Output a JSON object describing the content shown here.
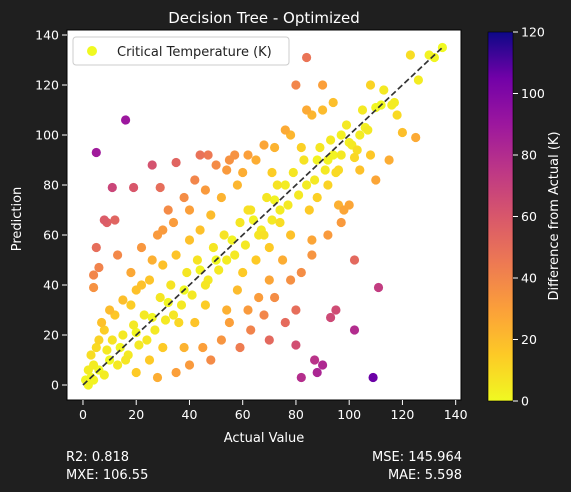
{
  "chart_data": {
    "type": "scatter",
    "title": "Decision Tree - Optimized",
    "xlabel": "Actual Value",
    "ylabel": "Prediction",
    "xlim": [
      -6,
      142
    ],
    "ylim": [
      -6,
      142
    ],
    "xticks": [
      0,
      20,
      40,
      60,
      80,
      100,
      120,
      140
    ],
    "yticks": [
      0,
      20,
      40,
      60,
      80,
      100,
      120,
      140
    ],
    "grid": false,
    "legend": {
      "placement": "top-left",
      "entries": [
        "Critical Temperature (K)"
      ]
    },
    "reference_line": {
      "style": "dashed",
      "color": "#333333",
      "from": [
        0,
        0
      ],
      "to": [
        135,
        135
      ]
    },
    "colorbar": {
      "label": "Difference from Actual (K)",
      "range": [
        0,
        120
      ],
      "ticks": [
        0,
        20,
        40,
        60,
        80,
        100,
        120
      ],
      "colormap": "plasma_r"
    },
    "series": [
      {
        "name": "Critical Temperature (K)",
        "points": [
          [
            5,
            93,
            88
          ],
          [
            16,
            106,
            90
          ],
          [
            11,
            79,
            68
          ],
          [
            8,
            66,
            58
          ],
          [
            9,
            65,
            56
          ],
          [
            12,
            66,
            54
          ],
          [
            5,
            55,
            50
          ],
          [
            4,
            44,
            40
          ],
          [
            4,
            39,
            35
          ],
          [
            6,
            47,
            41
          ],
          [
            13,
            52,
            39
          ],
          [
            19,
            79,
            60
          ],
          [
            26,
            88,
            62
          ],
          [
            29,
            79,
            50
          ],
          [
            35,
            89,
            54
          ],
          [
            44,
            92,
            48
          ],
          [
            47,
            92,
            45
          ],
          [
            57,
            92,
            35
          ],
          [
            65,
            90,
            25
          ],
          [
            71,
            85,
            14
          ],
          [
            80,
            120,
            40
          ],
          [
            84,
            131,
            47
          ],
          [
            90,
            120,
            30
          ],
          [
            94,
            113,
            19
          ],
          [
            102,
            91,
            11
          ],
          [
            108,
            120,
            12
          ],
          [
            110,
            82,
            28
          ],
          [
            115,
            90,
            25
          ],
          [
            123,
            132,
            9
          ],
          [
            130,
            132,
            2
          ],
          [
            135,
            135,
            0
          ],
          [
            132,
            131,
            1
          ],
          [
            118,
            108,
            10
          ],
          [
            120,
            101,
            19
          ],
          [
            125,
            99,
            26
          ],
          [
            106,
            103,
            3
          ],
          [
            110,
            111,
            1
          ],
          [
            97,
            100,
            3
          ],
          [
            112,
            112,
            0
          ],
          [
            100,
            97,
            3
          ],
          [
            92,
            90,
            2
          ],
          [
            103,
            94,
            9
          ],
          [
            96,
            86,
            10
          ],
          [
            98,
            70,
            28
          ],
          [
            102,
            50,
            52
          ],
          [
            95,
            30,
            65
          ],
          [
            102,
            22,
            80
          ],
          [
            109,
            3,
            106
          ],
          [
            111,
            39,
            72
          ],
          [
            93,
            27,
            66
          ],
          [
            90,
            8,
            82
          ],
          [
            88,
            5,
            83
          ],
          [
            87,
            10,
            77
          ],
          [
            82,
            3,
            79
          ],
          [
            80,
            16,
            64
          ],
          [
            80,
            30,
            50
          ],
          [
            76,
            25,
            51
          ],
          [
            72,
            35,
            37
          ],
          [
            70,
            18,
            52
          ],
          [
            68,
            28,
            40
          ],
          [
            63,
            22,
            41
          ],
          [
            59,
            15,
            44
          ],
          [
            55,
            25,
            30
          ],
          [
            52,
            18,
            34
          ],
          [
            48,
            10,
            38
          ],
          [
            45,
            15,
            30
          ],
          [
            42,
            25,
            17
          ],
          [
            40,
            8,
            32
          ],
          [
            35,
            5,
            30
          ],
          [
            28,
            3,
            25
          ],
          [
            30,
            15,
            15
          ],
          [
            25,
            10,
            15
          ],
          [
            20,
            5,
            15
          ],
          [
            38,
            15,
            23
          ],
          [
            36,
            25,
            11
          ],
          [
            60,
            45,
            15
          ],
          [
            65,
            50,
            15
          ],
          [
            70,
            55,
            15
          ],
          [
            75,
            50,
            25
          ],
          [
            78,
            60,
            18
          ],
          [
            85,
            70,
            15
          ],
          [
            88,
            75,
            13
          ],
          [
            92,
            80,
            12
          ],
          [
            95,
            85,
            10
          ],
          [
            100,
            72,
            28
          ],
          [
            97,
            65,
            32
          ],
          [
            86,
            58,
            28
          ],
          [
            82,
            45,
            37
          ],
          [
            74,
            65,
            9
          ],
          [
            68,
            60,
            8
          ],
          [
            62,
            70,
            8
          ],
          [
            58,
            80,
            22
          ],
          [
            52,
            75,
            23
          ],
          [
            48,
            68,
            20
          ],
          [
            44,
            62,
            18
          ],
          [
            40,
            58,
            18
          ],
          [
            35,
            52,
            17
          ],
          [
            30,
            48,
            18
          ],
          [
            25,
            42,
            17
          ],
          [
            20,
            38,
            18
          ],
          [
            15,
            34,
            19
          ],
          [
            10,
            30,
            20
          ],
          [
            8,
            22,
            14
          ],
          [
            6,
            18,
            12
          ],
          [
            12,
            28,
            16
          ],
          [
            18,
            45,
            27
          ],
          [
            22,
            55,
            33
          ],
          [
            28,
            60,
            32
          ],
          [
            32,
            70,
            38
          ],
          [
            38,
            75,
            37
          ],
          [
            42,
            82,
            40
          ],
          [
            50,
            88,
            38
          ],
          [
            55,
            90,
            35
          ],
          [
            60,
            85,
            25
          ],
          [
            72,
            95,
            23
          ],
          [
            78,
            100,
            22
          ],
          [
            86,
            108,
            22
          ],
          [
            90,
            110,
            20
          ],
          [
            82,
            95,
            13
          ],
          [
            88,
            90,
            2
          ],
          [
            76,
            80,
            4
          ],
          [
            72,
            74,
            2
          ],
          [
            64,
            66,
            2
          ],
          [
            56,
            58,
            2
          ],
          [
            50,
            50,
            0
          ],
          [
            44,
            46,
            2
          ],
          [
            38,
            38,
            0
          ],
          [
            32,
            33,
            1
          ],
          [
            26,
            27,
            1
          ],
          [
            20,
            21,
            1
          ],
          [
            14,
            15,
            1
          ],
          [
            10,
            10,
            0
          ],
          [
            6,
            6,
            0
          ],
          [
            3,
            3,
            0
          ],
          [
            1,
            2,
            1
          ],
          [
            2,
            0,
            2
          ],
          [
            4,
            8,
            4
          ],
          [
            8,
            4,
            4
          ],
          [
            16,
            10,
            6
          ],
          [
            24,
            18,
            6
          ],
          [
            34,
            28,
            6
          ],
          [
            46,
            40,
            6
          ],
          [
            54,
            50,
            4
          ],
          [
            66,
            60,
            6
          ],
          [
            74,
            70,
            4
          ],
          [
            84,
            80,
            4
          ],
          [
            94,
            92,
            2
          ],
          [
            104,
            100,
            4
          ],
          [
            116,
            112,
            4
          ],
          [
            126,
            122,
            4
          ],
          [
            62,
            30,
            32
          ],
          [
            66,
            35,
            31
          ],
          [
            54,
            30,
            24
          ],
          [
            46,
            32,
            14
          ],
          [
            58,
            38,
            20
          ],
          [
            70,
            42,
            28
          ],
          [
            78,
            42,
            36
          ],
          [
            86,
            52,
            34
          ],
          [
            92,
            60,
            32
          ],
          [
            96,
            72,
            24
          ],
          [
            104,
            86,
            18
          ],
          [
            108,
            92,
            16
          ],
          [
            30,
            62,
            32
          ],
          [
            34,
            65,
            31
          ],
          [
            26,
            50,
            24
          ],
          [
            18,
            32,
            14
          ],
          [
            22,
            40,
            18
          ],
          [
            40,
            70,
            30
          ],
          [
            46,
            78,
            32
          ],
          [
            54,
            86,
            32
          ],
          [
            62,
            92,
            30
          ],
          [
            68,
            96,
            28
          ],
          [
            76,
            102,
            26
          ],
          [
            84,
            110,
            26
          ],
          [
            3,
            12,
            9
          ],
          [
            5,
            15,
            10
          ],
          [
            7,
            25,
            18
          ],
          [
            2,
            6,
            4
          ],
          [
            4,
            2,
            2
          ],
          [
            9,
            14,
            5
          ],
          [
            11,
            18,
            7
          ],
          [
            13,
            8,
            5
          ],
          [
            15,
            20,
            5
          ],
          [
            17,
            12,
            5
          ],
          [
            19,
            24,
            5
          ],
          [
            21,
            16,
            5
          ],
          [
            23,
            28,
            5
          ],
          [
            27,
            22,
            5
          ],
          [
            29,
            35,
            6
          ],
          [
            31,
            26,
            5
          ],
          [
            33,
            40,
            7
          ],
          [
            37,
            32,
            5
          ],
          [
            39,
            45,
            6
          ],
          [
            41,
            36,
            5
          ],
          [
            43,
            50,
            7
          ],
          [
            47,
            42,
            5
          ],
          [
            49,
            55,
            6
          ],
          [
            51,
            46,
            5
          ],
          [
            53,
            60,
            7
          ],
          [
            57,
            52,
            5
          ],
          [
            59,
            65,
            6
          ],
          [
            61,
            56,
            5
          ],
          [
            63,
            70,
            7
          ],
          [
            67,
            62,
            5
          ],
          [
            69,
            75,
            6
          ],
          [
            71,
            66,
            5
          ],
          [
            73,
            80,
            7
          ],
          [
            77,
            72,
            5
          ],
          [
            79,
            85,
            6
          ],
          [
            81,
            76,
            5
          ],
          [
            83,
            90,
            7
          ],
          [
            87,
            82,
            5
          ],
          [
            89,
            95,
            6
          ],
          [
            91,
            86,
            5
          ],
          [
            93,
            98,
            5
          ],
          [
            97,
            92,
            5
          ],
          [
            99,
            104,
            5
          ],
          [
            101,
            96,
            5
          ],
          [
            105,
            110,
            5
          ],
          [
            107,
            102,
            5
          ],
          [
            113,
            118,
            5
          ],
          [
            117,
            113,
            4
          ]
        ]
      }
    ]
  },
  "metrics": {
    "r2": "R2: 0.818",
    "mxe": "MXE: 106.55",
    "mse": "MSE: 145.964",
    "mae": "MAE: 5.598"
  }
}
